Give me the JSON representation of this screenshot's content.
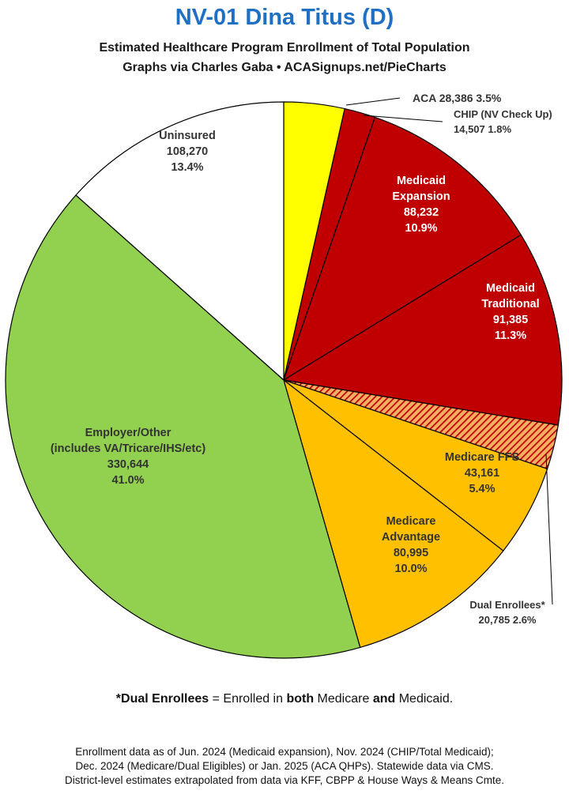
{
  "header": {
    "title": "NV-01 Dina Titus (D)",
    "subtitle_1": "Estimated Healthcare Program Enrollment of Total Population",
    "subtitle_2": "Graphs via Charles Gaba  •  ACASignups.net/PieCharts"
  },
  "chart_data": {
    "type": "pie",
    "title": "NV-01 Dina Titus (D)",
    "slices": [
      {
        "label_lines": [
          "ACA 28,386 3.5%"
        ],
        "value": 28386,
        "percent": 3.5,
        "color": "#ffff00",
        "pattern": "solid",
        "label_color": "#333333",
        "label_placement": "outside"
      },
      {
        "label_lines": [
          "CHIP (NV Check Up)",
          "14,507 1.8%"
        ],
        "value": 14507,
        "percent": 1.8,
        "color": "#c00000",
        "pattern": "solid",
        "label_color": "#333333",
        "label_placement": "outside"
      },
      {
        "label_lines": [
          "Medicaid",
          "Expansion",
          "88,232",
          "10.9%"
        ],
        "value": 88232,
        "percent": 10.9,
        "color": "#c00000",
        "pattern": "solid",
        "label_color": "#ffffff",
        "label_placement": "inside"
      },
      {
        "label_lines": [
          "Medicaid",
          "Traditional",
          "91,385",
          "11.3%"
        ],
        "value": 91385,
        "percent": 11.3,
        "color": "#c00000",
        "pattern": "solid",
        "label_color": "#ffffff",
        "label_placement": "inside"
      },
      {
        "label_lines": [
          "Dual Enrollees*",
          "20,785 2.6%"
        ],
        "value": 20785,
        "percent": 2.6,
        "color": "#c00000",
        "pattern": "hatched",
        "label_color": "#333333",
        "label_placement": "outside"
      },
      {
        "label_lines": [
          "Medicare FFS",
          "43,161",
          "5.4%"
        ],
        "value": 43161,
        "percent": 5.4,
        "color": "#ffc000",
        "pattern": "solid",
        "label_color": "#333333",
        "label_placement": "inside"
      },
      {
        "label_lines": [
          "Medicare",
          "Advantage",
          "80,995",
          "10.0%"
        ],
        "value": 80995,
        "percent": 10.0,
        "color": "#ffc000",
        "pattern": "solid",
        "label_color": "#333333",
        "label_placement": "inside"
      },
      {
        "label_lines": [
          "Employer/Other",
          "(includes VA/Tricare/IHS/etc)",
          "330,644",
          "41.0%"
        ],
        "value": 330644,
        "percent": 41.0,
        "color": "#92d050",
        "pattern": "solid",
        "label_color": "#333333",
        "label_placement": "inside"
      },
      {
        "label_lines": [
          "Uninsured",
          "108,270",
          "13.4%"
        ],
        "value": 108270,
        "percent": 13.4,
        "color": "#ffffff",
        "pattern": "solid",
        "label_color": "#333333",
        "label_placement": "inside"
      }
    ]
  },
  "footnote": {
    "star_term": "*Dual Enrollees",
    "text_1": " = Enrolled in ",
    "both": "both",
    "text_2": " Medicare ",
    "and": "and",
    "text_3": " Medicaid."
  },
  "sources": {
    "line_1": "Enrollment data as of Jun. 2024 (Medicaid expansion), Nov. 2024 (CHIP/Total Medicaid);",
    "line_2": "Dec. 2024 (Medicare/Dual Eligibles) or Jan. 2025 (ACA QHPs). Statewide data via CMS.",
    "line_3": "District-level estimates extrapolated from data via KFF, CBPP & House Ways & Means Cmte."
  }
}
